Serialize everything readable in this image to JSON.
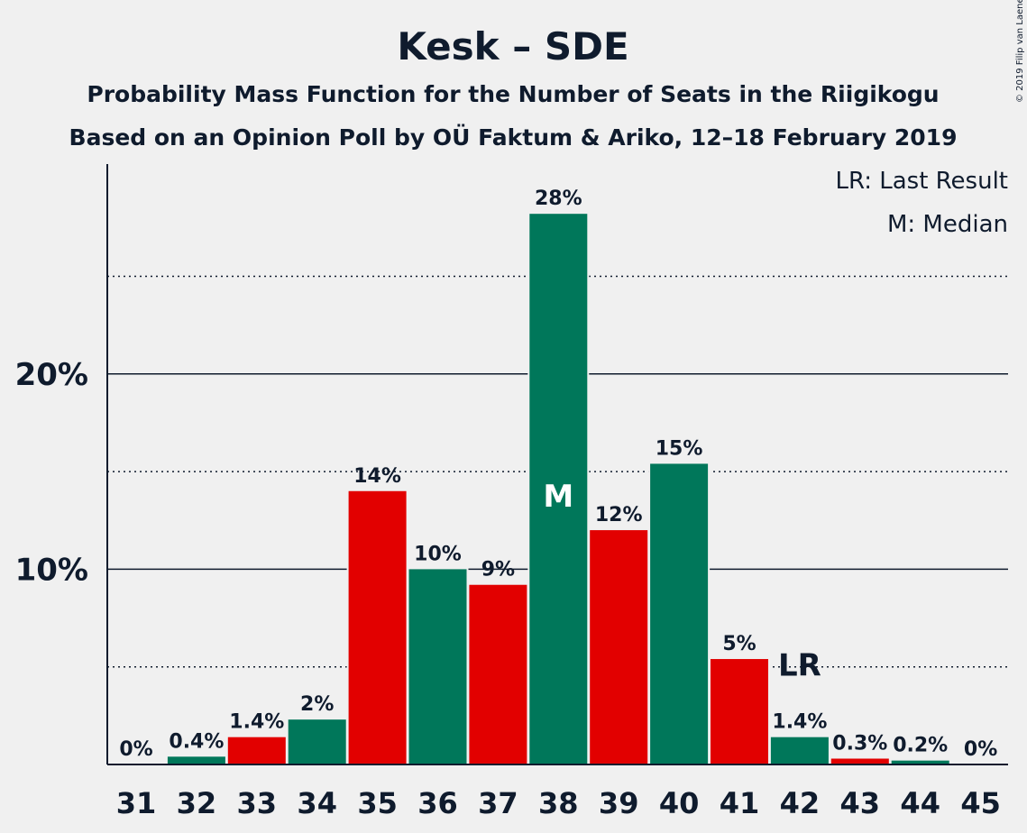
{
  "title": "Kesk – SDE",
  "subtitle_1": "Probability Mass Function for the Number of Seats in the Riigikogu",
  "subtitle_2": "Based on an Opinion Poll by OÜ Faktum & Ariko, 12–18 February 2019",
  "copyright": "© 2019 Filip van Laenen",
  "legend": {
    "last_result": "LR: Last Result",
    "median": "M: Median"
  },
  "colors": {
    "green": "#00775a",
    "red": "#e20000",
    "background": "#f0f0f0",
    "text": "#0f1b2d"
  },
  "chart_data": {
    "type": "bar",
    "categories": [
      "31",
      "32",
      "33",
      "34",
      "35",
      "36",
      "37",
      "38",
      "39",
      "40",
      "41",
      "42",
      "43",
      "44",
      "45"
    ],
    "values": [
      0,
      0.4,
      1.4,
      2.3,
      14.0,
      10.0,
      9.2,
      28.2,
      12.0,
      15.4,
      5.4,
      1.4,
      0.3,
      0.2,
      0
    ],
    "labels": [
      "0%",
      "0.4%",
      "1.4%",
      "2%",
      "14%",
      "10%",
      "9%",
      "28%",
      "12%",
      "15%",
      "5%",
      "1.4%",
      "0.3%",
      "0.2%",
      "0%"
    ],
    "bar_colors": [
      "green",
      "green",
      "red",
      "green",
      "red",
      "green",
      "red",
      "green",
      "red",
      "green",
      "red",
      "green",
      "red",
      "green",
      "green"
    ],
    "ylim": [
      0,
      30
    ],
    "yticks": [
      {
        "value": 10,
        "label": "10%"
      },
      {
        "value": 20,
        "label": "20%"
      }
    ],
    "minor_gridlines": [
      5,
      15,
      25
    ],
    "median_category": "38",
    "median_marker": "M",
    "last_result_category": "42",
    "last_result_marker": "LR",
    "legend_position": "top-right"
  }
}
